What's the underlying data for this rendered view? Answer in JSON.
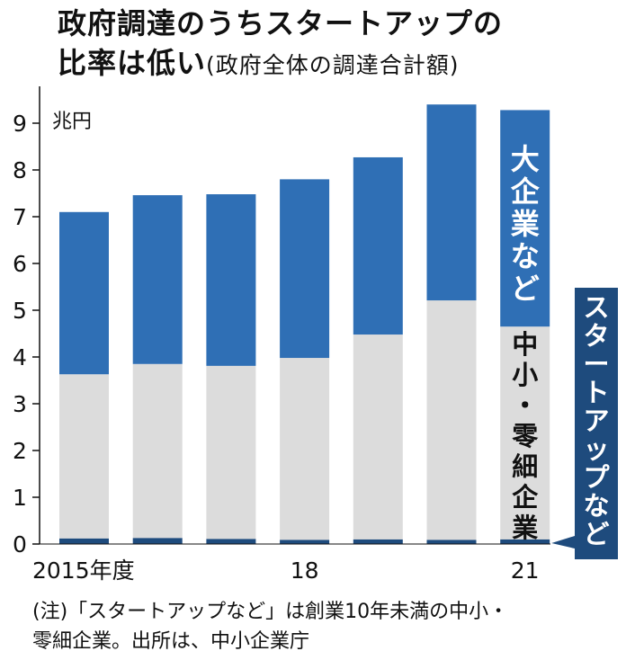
{
  "title": {
    "line1": "政府調達のうちスタートアップの",
    "line2_main": "比率は低い",
    "line2_sub": "(政府全体の調達合計額)"
  },
  "colors": {
    "large": "#2f6fb5",
    "sme": "#dcdcdc",
    "startup": "#1e4b7d",
    "label_box": "#1e4b7d"
  },
  "chart_data": {
    "type": "bar",
    "stacked": true,
    "categories": [
      "2015",
      "2016",
      "2017",
      "2018",
      "2019",
      "2020",
      "2021"
    ],
    "x_tick_labels": [
      "2015年度",
      "",
      "",
      "18",
      "",
      "",
      "21"
    ],
    "ylabel": "兆円",
    "ylim": [
      0,
      9.4
    ],
    "yticks": [
      "0",
      "1",
      "2",
      "3",
      "4",
      "5",
      "6",
      "7",
      "8",
      "9"
    ],
    "grid": false,
    "series": [
      {
        "name": "スタートアップなど",
        "values": [
          0.12,
          0.13,
          0.11,
          0.09,
          0.1,
          0.09,
          0.1
        ]
      },
      {
        "name": "中小・零細企業",
        "values": [
          3.51,
          3.72,
          3.7,
          3.89,
          4.38,
          5.12,
          4.55
        ]
      },
      {
        "name": "大企業など",
        "values": [
          3.47,
          3.61,
          3.67,
          3.82,
          3.79,
          4.19,
          4.63
        ]
      }
    ],
    "labels": {
      "large": "大企業など",
      "sme": "中小・零細企業",
      "startup": "スタートアップなど"
    }
  },
  "note": {
    "line1": "(注)「スタートアップなど」は創業10年未満の中小・",
    "line2": "零細企業。出所は、中小企業庁"
  }
}
